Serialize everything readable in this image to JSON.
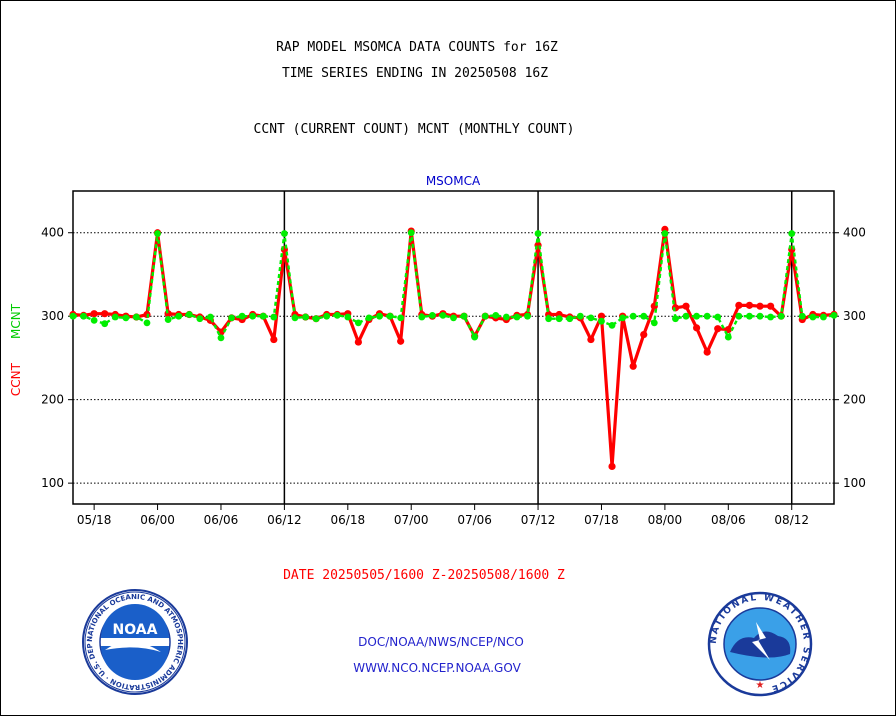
{
  "chart_data": {
    "type": "line",
    "title_lines": [
      "RAP MODEL MSOMCA DATA COUNTS for 16Z",
      "TIME SERIES ENDING IN 20250508 16Z"
    ],
    "subtitle": "CCNT (CURRENT COUNT) MCNT (MONTHLY COUNT)",
    "panel_label": "MSOMCA",
    "ylabel_ccnt": "CCNT",
    "ylabel_mcnt": "MCNT",
    "date_range": "DATE 20250505/1600 Z-20250508/1600 Z",
    "x_ticks": [
      "05/18",
      "06/00",
      "06/06",
      "06/12",
      "06/18",
      "07/00",
      "07/06",
      "07/12",
      "07/18",
      "08/00",
      "08/06",
      "08/12"
    ],
    "x_tick_hours": [
      2,
      8,
      14,
      20,
      26,
      32,
      38,
      44,
      50,
      56,
      62,
      68
    ],
    "day_boundary_hours": [
      20,
      44,
      68
    ],
    "x_range": [
      0,
      72
    ],
    "y_ticks": [
      100,
      200,
      300,
      400
    ],
    "ylim": [
      75,
      450
    ],
    "grid": "dotted horizontal",
    "series": [
      {
        "name": "CCNT",
        "color": "#ff0000",
        "values": [
          302,
          301,
          303,
          303,
          302,
          300,
          299,
          302,
          400,
          303,
          302,
          302,
          299,
          295,
          281,
          298,
          296,
          302,
          300,
          272,
          380,
          302,
          299,
          297,
          302,
          302,
          303,
          269,
          296,
          303,
          300,
          270,
          402,
          302,
          300,
          303,
          300,
          300,
          276,
          300,
          298,
          296,
          301,
          302,
          385,
          302,
          302,
          299,
          298,
          272,
          300,
          120,
          300,
          240,
          278,
          312,
          404,
          310,
          312,
          286,
          257,
          285,
          284,
          313,
          313,
          312,
          312,
          300,
          380,
          296,
          302,
          301,
          302
        ]
      },
      {
        "name": "MCNT",
        "color": "#00ee00",
        "values": [
          300,
          300,
          295,
          291,
          299,
          298,
          299,
          292,
          399,
          296,
          300,
          302,
          297,
          299,
          274,
          298,
          300,
          300,
          300,
          299,
          399,
          298,
          299,
          297,
          300,
          301,
          299,
          292,
          298,
          300,
          300,
          298,
          400,
          299,
          301,
          301,
          298,
          300,
          275,
          300,
          301,
          299,
          299,
          300,
          399,
          297,
          297,
          297,
          300,
          298,
          294,
          289,
          298,
          300,
          300,
          292,
          399,
          297,
          300,
          300,
          300,
          299,
          275,
          300,
          300,
          300,
          299,
          300,
          399,
          300,
          299,
          299,
          301
        ]
      }
    ]
  },
  "footer": {
    "links": [
      "DOC/NOAA/NWS/NCEP/NCO",
      "WWW.NCO.NCEP.NOAA.GOV"
    ],
    "logo_left": "noaa-logo",
    "logo_right": "nws-logo",
    "logo_left_text": "NOAA",
    "logo_left_ring_text": "NATIONAL OCEANIC AND ATMOSPHERIC ADMINISTRATION · U.S. DEPARTMENT OF COMMERCE",
    "logo_right_ring_text": "NATIONAL WEATHER SERVICE"
  }
}
